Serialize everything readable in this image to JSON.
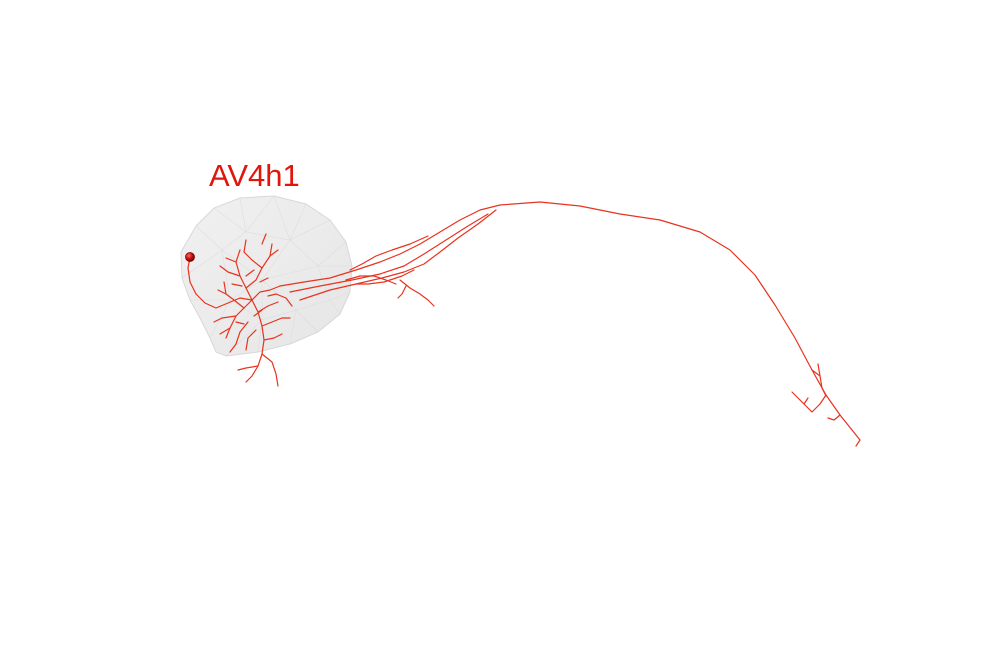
{
  "figure": {
    "label": "AV4h1",
    "label_color": "#e0150b",
    "neuron_color": "#e8331f",
    "soma_color": "#b00d0d",
    "neuropil_fill": "#ebebeb",
    "background": "#ffffff"
  }
}
